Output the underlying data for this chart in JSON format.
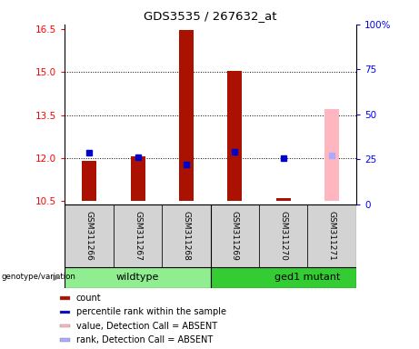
{
  "title": "GDS3535 / 267632_at",
  "samples": [
    "GSM311266",
    "GSM311267",
    "GSM311268",
    "GSM311269",
    "GSM311270",
    "GSM311271"
  ],
  "ylim": [
    10.4,
    16.65
  ],
  "y2lim": [
    0,
    100
  ],
  "yticks": [
    10.5,
    12.0,
    13.5,
    15.0,
    16.5
  ],
  "y2ticks": [
    0,
    25,
    50,
    75,
    100
  ],
  "y2tick_labels": [
    "0",
    "25",
    "50",
    "75",
    "100%"
  ],
  "dotted_lines": [
    12.0,
    13.5,
    15.0
  ],
  "bar_color": "#aa1100",
  "bar_color_absent": "#ffb6c1",
  "rank_color": "#0000cc",
  "rank_color_absent": "#aaaaff",
  "bar_width": 0.3,
  "count_values": [
    11.9,
    12.05,
    16.45,
    15.02,
    10.6,
    null
  ],
  "rank_values": [
    12.2,
    12.02,
    11.78,
    12.22,
    12.0,
    null
  ],
  "absent_count_values": [
    null,
    null,
    null,
    null,
    null,
    13.7
  ],
  "absent_rank_values": [
    null,
    null,
    null,
    null,
    null,
    12.1
  ],
  "baseline": 10.5,
  "legend_items": [
    {
      "label": "count",
      "color": "#aa1100"
    },
    {
      "label": "percentile rank within the sample",
      "color": "#0000cc"
    },
    {
      "label": "value, Detection Call = ABSENT",
      "color": "#ffb6c1"
    },
    {
      "label": "rank, Detection Call = ABSENT",
      "color": "#aaaaff"
    }
  ],
  "wildtype_color": "#90ee90",
  "mutant_color": "#33cc33",
  "sample_box_color": "#d3d3d3"
}
